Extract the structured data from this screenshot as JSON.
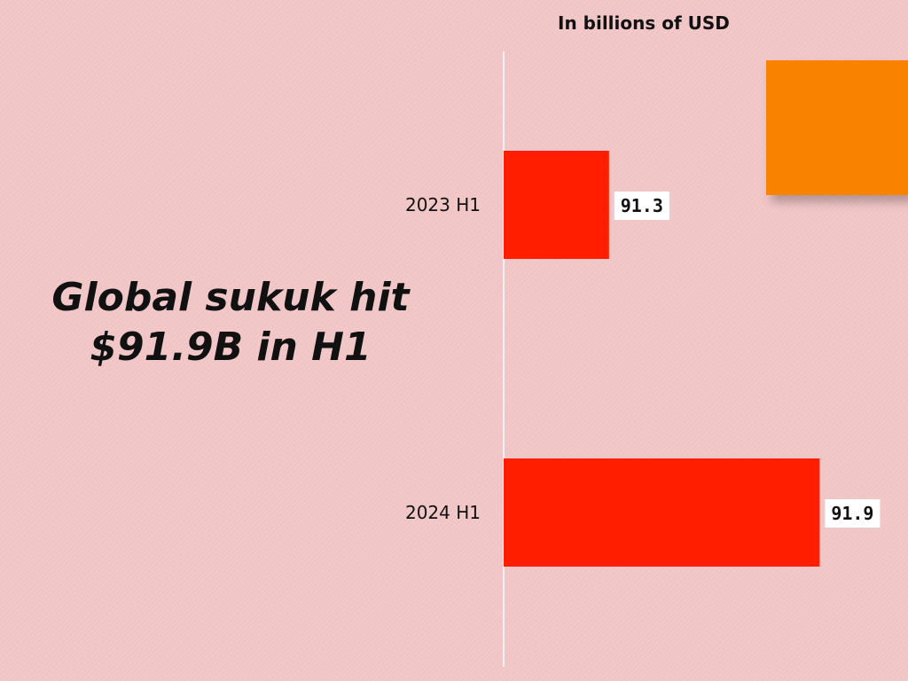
{
  "headline": {
    "line1": "Global sukuk hit",
    "line2": "$91.9B in H1"
  },
  "unit_note": "In billions of USD",
  "colors": {
    "bar": "#ff1e00",
    "accent": "#f98200",
    "axis": "#ffffff",
    "label_bg": "#ffffff"
  },
  "chart_data": {
    "type": "bar",
    "orientation": "horizontal",
    "title": "",
    "xlabel": "",
    "ylabel": "",
    "categories": [
      "2023 H1",
      "2024 H1"
    ],
    "values": [
      91.3,
      91.9
    ],
    "value_labels": [
      "91.3",
      "91.9"
    ],
    "xlim": [
      91.0,
      92.0
    ],
    "grid": false,
    "legend": "none"
  }
}
